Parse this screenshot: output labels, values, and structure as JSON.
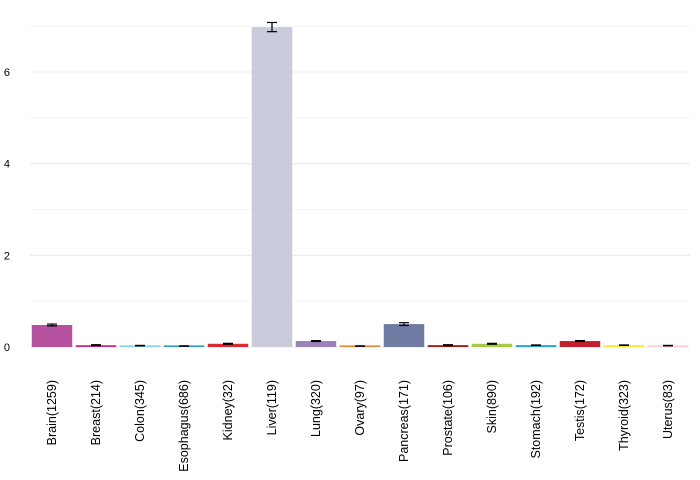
{
  "chart_data": {
    "type": "bar",
    "title": "",
    "xlabel": "",
    "ylabel": "",
    "ylim": [
      0,
      7.3
    ],
    "y_ticks": [
      0,
      2,
      4,
      6
    ],
    "y_tick_labels": [
      "0",
      "2",
      "4",
      "6"
    ],
    "grid": "horizontal",
    "categories": [
      "Brain(1259)",
      "Breast(214)",
      "Colon(345)",
      "Esophagus(686)",
      "Kidney(32)",
      "Liver(119)",
      "Lung(320)",
      "Ovary(97)",
      "Pancreas(171)",
      "Prostate(106)",
      "Skin(890)",
      "Stomach(192)",
      "Testis(172)",
      "Thyroid(323)",
      "Uterus(83)"
    ],
    "values": [
      0.48,
      0.04,
      0.03,
      0.02,
      0.07,
      6.98,
      0.13,
      0.02,
      0.5,
      0.04,
      0.07,
      0.04,
      0.13,
      0.04,
      0.03
    ],
    "errors": [
      0.02,
      0.01,
      0.005,
      0.005,
      0.01,
      0.1,
      0.01,
      0.005,
      0.03,
      0.01,
      0.01,
      0.005,
      0.01,
      0.005,
      0.005
    ],
    "colors": [
      "#b5519e",
      "#c2338c",
      "#86cfe8",
      "#2a9fb8",
      "#d9282f",
      "#c9cbdb",
      "#9a82bd",
      "#e3892f",
      "#6f7ba2",
      "#9b1c1c",
      "#a6cc44",
      "#1fa3c8",
      "#c2202f",
      "#f6ea3c",
      "#f9cfd6"
    ]
  }
}
